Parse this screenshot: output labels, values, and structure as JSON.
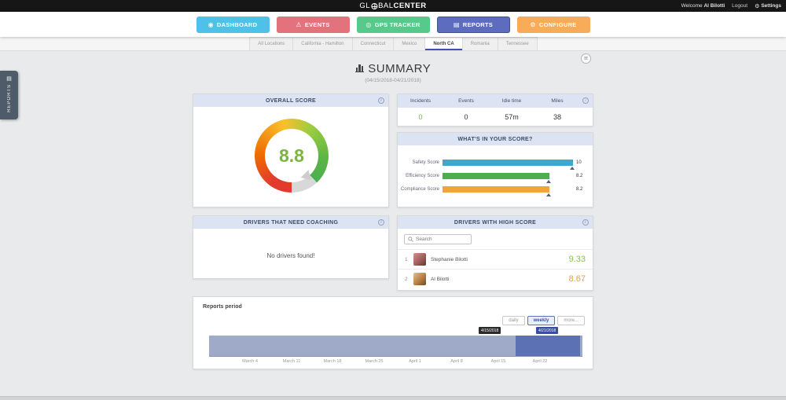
{
  "icons": {
    "gear": "⚙",
    "dashboard": "◉",
    "events": "⚠",
    "gps_tracker": "◎",
    "reports": "▤",
    "menu": "≡"
  },
  "colors": {
    "dashboard_button": "#4fc1e9",
    "events_button": "#e2737d",
    "gps_button": "#57c98a",
    "reports_button": "#5e6cc0",
    "configure_button": "#f8ab59",
    "card_header_bg": "#dce3f3",
    "score_green": "#7cb342",
    "safety_bar": "#3fa7cc",
    "efficiency_bar": "#4cae4f",
    "compliance_bar": "#f2a43a",
    "timeline_band": "#9fa9c8",
    "timeline_selection": "#5c71b4"
  },
  "topbar": {
    "logo": {
      "pre": "GL",
      "mid": "BAL",
      "bold": "CENTER"
    },
    "welcome_prefix": "Welcome",
    "username": "Al Bilotti",
    "logout_label": "Logout",
    "settings_label": "Settings"
  },
  "nav": {
    "dashboard": "DASHBOARD",
    "events": "EVENTS",
    "gps_tracker": "GPS TRACKER",
    "reports": "REPORTS",
    "configure": "CONFIGURE"
  },
  "tabs": {
    "items": [
      "All Locations",
      "California - Hamilton",
      "Connecticut",
      "Mexico",
      "North CA",
      "Romania",
      "Tennessee"
    ],
    "active": "North CA"
  },
  "sidebar": {
    "label": "REPORTS"
  },
  "page": {
    "title": "SUMMARY",
    "date_range": "(04/15/2018-04/21/2018)"
  },
  "overall_score": {
    "title": "OVERALL SCORE",
    "value": "8.8",
    "chart_data": {
      "type": "gauge",
      "value": 8.8,
      "max": 10
    }
  },
  "stats": {
    "columns": [
      "Incidents",
      "Events",
      "Idle time",
      "Miles"
    ],
    "values": [
      "0",
      "0",
      "57m",
      "38"
    ]
  },
  "score_breakdown": {
    "title": "WHAT'S IN YOUR SCORE?",
    "chart_data": {
      "type": "bar",
      "orientation": "horizontal",
      "categories": [
        "Safety Score",
        "Efficiency Score",
        "Compliance Score"
      ],
      "values": [
        10,
        8.2,
        8.2
      ],
      "value_labels": [
        "10",
        "8.2",
        "8.2"
      ],
      "width_pct": [
        100,
        82,
        82
      ],
      "xlim": [
        0,
        10
      ]
    }
  },
  "coaching": {
    "title": "DRIVERS THAT NEED COACHING",
    "empty_message": "No drivers found!"
  },
  "high_scores": {
    "title": "DRIVERS WITH HIGH SCORE",
    "search_placeholder": "Search",
    "drivers": [
      {
        "rank": "1",
        "name": "Stephanie Bilotti",
        "score": "9.33"
      },
      {
        "rank": "2",
        "name": "Al Bilotti",
        "score": "8.67"
      }
    ]
  },
  "reports_period": {
    "title": "Reports period",
    "range_buttons": [
      "daily",
      "weekly",
      "more..."
    ],
    "active_button": "weekly",
    "selection_tooltips": [
      "4/15/2018",
      "4/21/2018"
    ],
    "chart_data": {
      "type": "area",
      "x": [
        "March 4",
        "March 11",
        "March 18",
        "March 25",
        "April 1",
        "April 8",
        "April 15",
        "April 22"
      ],
      "selected_range": [
        "4/15/2018",
        "4/21/2018"
      ]
    }
  }
}
